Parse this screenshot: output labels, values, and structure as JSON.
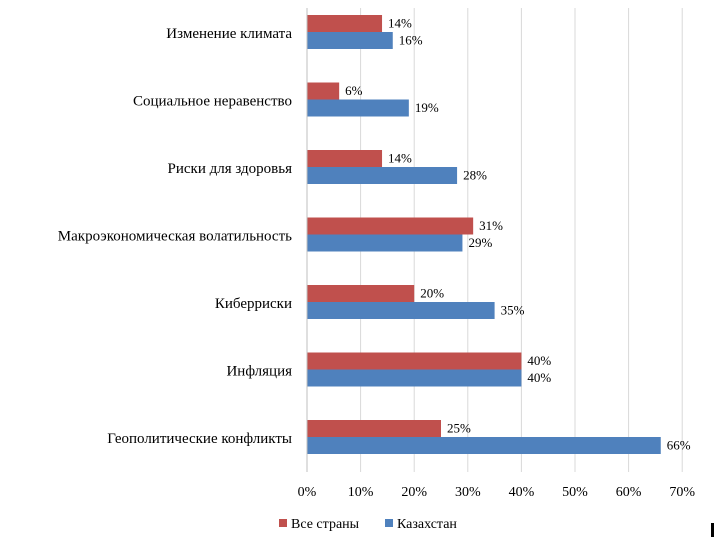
{
  "colors": {
    "series_all": "#c0504d",
    "series_kz": "#4f81bd",
    "grid": "#d9d9d9"
  },
  "chart_data": {
    "type": "bar",
    "orientation": "horizontal",
    "categories": [
      "Изменение климата",
      "Социальное неравенство",
      "Риски для здоровья",
      "Макроэкономическая  волатильность",
      "Киберриски",
      "Инфляция",
      "Геополитические конфликты"
    ],
    "series": [
      {
        "name": "Все страны",
        "values": [
          14,
          6,
          14,
          31,
          20,
          40,
          25
        ]
      },
      {
        "name": "Казахстан",
        "values": [
          16,
          19,
          28,
          29,
          35,
          40,
          66
        ]
      }
    ],
    "value_labels": [
      [
        "14%",
        "6%",
        "14%",
        "31%",
        "20%",
        "40%",
        "25%"
      ],
      [
        "16%",
        "19%",
        "28%",
        "29%",
        "35%",
        "40%",
        "66%"
      ]
    ],
    "xticks": [
      "0%",
      "10%",
      "20%",
      "30%",
      "40%",
      "50%",
      "60%",
      "70%"
    ],
    "xlim": [
      0,
      70
    ],
    "grid": true,
    "legend_position": "bottom-left"
  }
}
